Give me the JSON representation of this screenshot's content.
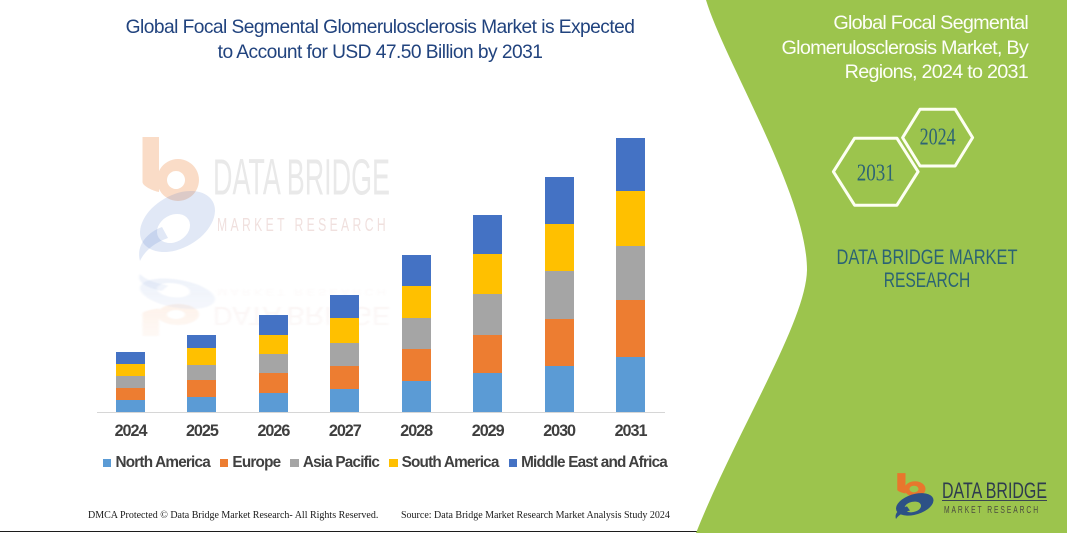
{
  "title": {
    "line1": "Global Focal Segmental Glomerulosclerosis Market is Expected",
    "line2": "to Account for USD 47.50 Billion by 2031",
    "color": "#21437E"
  },
  "panel": {
    "heading_line1": "Global Focal Segmental",
    "heading_line2": "Glomerulosclerosis Market, By",
    "heading_line3": "Regions, 2024 to 2031",
    "hexagon_left_year": "2031",
    "hexagon_right_year": "2024",
    "brand_line1": "DATA BRIDGE MARKET",
    "brand_line2": "RESEARCH",
    "green_color": "#9CC44D",
    "brand_text_color": "#2B6374"
  },
  "watermark": {
    "brand": "DATA BRIDGE",
    "subbrand": "MARKET RESEARCH"
  },
  "corner_logo": {
    "brand": "DATA BRIDGE",
    "subbrand": "MARKET RESEARCH"
  },
  "chart_data": {
    "type": "bar",
    "stacked": true,
    "title": "Global Focal Segmental Glomerulosclerosis Market is Expected to Account for USD 47.50 Billion by 2031",
    "unit": "USD Billion",
    "categories": [
      "2024",
      "2025",
      "2026",
      "2027",
      "2028",
      "2029",
      "2030",
      "2031"
    ],
    "series": [
      {
        "name": "North America",
        "color": "#5B9BD5",
        "values": [
          2.0,
          2.6,
          3.3,
          3.9,
          5.3,
          6.8,
          8.0,
          9.6
        ]
      },
      {
        "name": "Europe",
        "color": "#ED7D31",
        "values": [
          2.2,
          2.9,
          3.4,
          4.1,
          5.6,
          6.6,
          8.1,
          9.7
        ]
      },
      {
        "name": "Asia Pacific",
        "color": "#A5A5A5",
        "values": [
          2.0,
          2.6,
          3.4,
          3.9,
          5.4,
          7.0,
          8.3,
          9.5
        ]
      },
      {
        "name": "South America",
        "color": "#FFC000",
        "values": [
          2.1,
          2.9,
          3.3,
          4.4,
          5.5,
          7.0,
          8.2,
          9.4
        ]
      },
      {
        "name": "Middle East and Africa",
        "color": "#4472C4",
        "values": [
          2.0,
          2.4,
          3.4,
          3.9,
          5.3,
          6.7,
          8.1,
          9.3
        ]
      }
    ],
    "totals": [
      10.3,
      13.4,
      16.8,
      20.2,
      27.1,
      34.1,
      40.7,
      47.5
    ],
    "ylim": [
      0,
      47.5
    ],
    "legend_position": "bottom",
    "grid": false
  },
  "footer": {
    "left": "DMCA Protected © Data Bridge Market Research-  All Rights Reserved.",
    "right": "Source: Data Bridge Market Research  Market Analysis Study 2024"
  }
}
